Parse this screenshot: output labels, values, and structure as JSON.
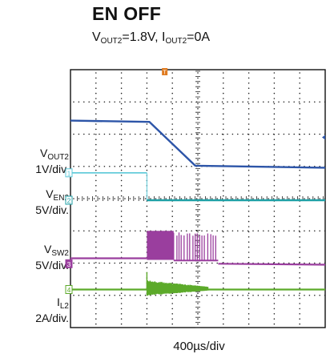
{
  "title": "EN OFF",
  "subtitle": {
    "v_prefix": "V",
    "v_sub": "OUT2",
    "v_value": "=1.8V, ",
    "i_prefix": "I",
    "i_sub": "OUT2",
    "i_value": "=0A"
  },
  "timebase": "400µs/div",
  "trigger_marker": "T",
  "colors": {
    "ch1": "#2d55a8",
    "ch1_marker": "#5bc8d8",
    "ch2": "#1fa0a6",
    "ch3": "#9a3e9e",
    "ch4": "#5caa2a",
    "grid": "#222222",
    "trigger": "#e07b20"
  },
  "chart_data": {
    "type": "line",
    "title": "EN OFF",
    "subtitle": "VOUT2=1.8V, IOUT2=0A",
    "xlabel": "400µs/div",
    "x_unit": "div",
    "xlim": [
      0,
      10
    ],
    "ylim": [
      0,
      8
    ],
    "grid": true,
    "series": [
      {
        "name": "VOUT2",
        "label_main": "V",
        "label_sub": "OUT2",
        "scale": "1V/div.",
        "channel": "1",
        "color": "#2d55a8",
        "x": [
          0,
          3.1,
          4.9,
          10
        ],
        "y": [
          6.42,
          6.38,
          5.02,
          4.96
        ]
      },
      {
        "name": "VEN2",
        "label_main": "V",
        "label_sub": "EN2",
        "scale": "5V/div.",
        "channel": "2",
        "color": "#1fa0a6",
        "marker_color": "#5bc8d8",
        "x": [
          0,
          3.0,
          3.0,
          10
        ],
        "y": [
          4.8,
          4.8,
          3.95,
          3.95
        ]
      },
      {
        "name": "VSW2",
        "label_main": "V",
        "label_sub": "SW2",
        "scale": "5V/div.",
        "channel": "3",
        "color": "#9a3e9e",
        "x": [
          0,
          3.0,
          3.0,
          5.8,
          5.8,
          10
        ],
        "y": [
          2.15,
          2.15,
          3.0,
          3.0,
          1.98,
          1.95
        ],
        "note": "switching burst between 3.0 and 5.8 div"
      },
      {
        "name": "IL2",
        "label_main": "I",
        "label_sub": "L2",
        "scale": "2A/div.",
        "channel": "4",
        "color": "#5caa2a",
        "x": [
          0,
          3.0,
          3.0,
          5.4,
          5.4,
          10
        ],
        "y": [
          1.18,
          1.18,
          1.4,
          1.4,
          1.18,
          1.18
        ],
        "note": "ripple burst between 3.0 and 5.4 div"
      }
    ]
  }
}
